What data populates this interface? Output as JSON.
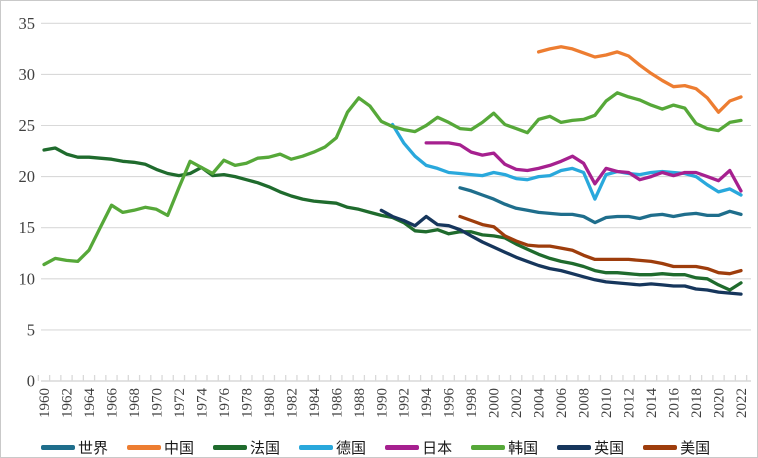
{
  "chart_data": {
    "type": "line",
    "title": "",
    "xlabel": "",
    "ylabel": "",
    "x_range": [
      1960,
      2022
    ],
    "ylim": [
      0,
      35
    ],
    "grid": true,
    "legend_position": "bottom",
    "y_ticks": [
      "0",
      "5",
      "10",
      "15",
      "20",
      "25",
      "30",
      "35"
    ],
    "x_tick_labels": [
      "1960",
      "1962",
      "1964",
      "1966",
      "1968",
      "1970",
      "1972",
      "1974",
      "1976",
      "1978",
      "1980",
      "1982",
      "1984",
      "1986",
      "1988",
      "1990",
      "1992",
      "1994",
      "1996",
      "1998",
      "2000",
      "2002",
      "2004",
      "2006",
      "2008",
      "2010",
      "2012",
      "2014",
      "2016",
      "2018",
      "2020",
      "2022"
    ],
    "series": [
      {
        "name": "世界",
        "key": "world",
        "color": "#1F6E8C",
        "start_year": 1997,
        "values": [
          18.9,
          18.6,
          18.2,
          17.8,
          17.3,
          16.9,
          16.7,
          16.5,
          16.4,
          16.3,
          16.3,
          16.1,
          15.5,
          16.0,
          16.1,
          16.1,
          15.9,
          16.2,
          16.3,
          16.1,
          16.3,
          16.4,
          16.2,
          16.2,
          16.6,
          16.3
        ]
      },
      {
        "name": "中国",
        "key": "china",
        "color": "#ED7D31",
        "start_year": 2004,
        "values": [
          32.2,
          32.5,
          32.7,
          32.5,
          32.1,
          31.7,
          31.9,
          32.2,
          31.8,
          30.9,
          30.1,
          29.4,
          28.8,
          28.9,
          28.6,
          27.7,
          26.3,
          27.4,
          27.8
        ]
      },
      {
        "name": "法国",
        "key": "france",
        "color": "#1F6B2D",
        "start_year": 1960,
        "values": [
          22.6,
          22.8,
          22.2,
          21.9,
          21.9,
          21.8,
          21.7,
          21.5,
          21.4,
          21.2,
          20.7,
          20.3,
          20.1,
          20.3,
          20.9,
          20.1,
          20.2,
          20.0,
          19.7,
          19.4,
          19.0,
          18.5,
          18.1,
          17.8,
          17.6,
          17.5,
          17.4,
          17.0,
          16.8,
          16.5,
          16.2,
          16.0,
          15.5,
          14.7,
          14.6,
          14.8,
          14.4,
          14.6,
          14.6,
          14.3,
          14.2,
          14.0,
          13.4,
          12.9,
          12.4,
          12.0,
          11.7,
          11.5,
          11.2,
          10.8,
          10.6,
          10.6,
          10.5,
          10.4,
          10.4,
          10.5,
          10.4,
          10.4,
          10.1,
          10.0,
          9.4,
          8.9,
          9.6
        ]
      },
      {
        "name": "德国",
        "key": "germany",
        "color": "#29A8DC",
        "start_year": 1991,
        "values": [
          25.1,
          23.3,
          22.0,
          21.1,
          20.8,
          20.4,
          20.3,
          20.2,
          20.1,
          20.4,
          20.2,
          19.8,
          19.7,
          20.0,
          20.1,
          20.6,
          20.8,
          20.4,
          17.8,
          20.2,
          20.5,
          20.3,
          20.2,
          20.4,
          20.5,
          20.4,
          20.3,
          20.0,
          19.2,
          18.5,
          18.8,
          18.2
        ]
      },
      {
        "name": "日本",
        "key": "japan",
        "color": "#A6208F",
        "start_year": 1994,
        "values": [
          23.3,
          23.3,
          23.3,
          23.1,
          22.4,
          22.1,
          22.3,
          21.2,
          20.7,
          20.6,
          20.8,
          21.1,
          21.5,
          22.0,
          21.3,
          19.3,
          20.8,
          20.5,
          20.4,
          19.7,
          20.0,
          20.4,
          20.1,
          20.4,
          20.4,
          20.0,
          19.6,
          20.6,
          18.6
        ]
      },
      {
        "name": "韩国",
        "key": "korea",
        "color": "#56A839",
        "start_year": 1960,
        "values": [
          11.4,
          12.0,
          11.8,
          11.7,
          12.8,
          15.0,
          17.2,
          16.5,
          16.7,
          17.0,
          16.8,
          16.2,
          18.9,
          21.5,
          20.9,
          20.3,
          21.6,
          21.1,
          21.3,
          21.8,
          21.9,
          22.2,
          21.7,
          22.0,
          22.4,
          22.9,
          23.8,
          26.3,
          27.7,
          26.9,
          25.4,
          24.9,
          24.6,
          24.4,
          25.0,
          25.8,
          25.3,
          24.7,
          24.6,
          25.3,
          26.2,
          25.1,
          24.7,
          24.3,
          25.6,
          25.9,
          25.3,
          25.5,
          25.6,
          26.0,
          27.4,
          28.2,
          27.8,
          27.5,
          27.0,
          26.6,
          27.0,
          26.7,
          25.2,
          24.7,
          24.5,
          25.3,
          25.5
        ]
      },
      {
        "name": "英国",
        "key": "uk",
        "color": "#16365C",
        "start_year": 1990,
        "values": [
          16.7,
          16.1,
          15.7,
          15.2,
          16.1,
          15.3,
          15.2,
          14.8,
          14.2,
          13.6,
          13.1,
          12.6,
          12.1,
          11.7,
          11.3,
          11.0,
          10.8,
          10.5,
          10.2,
          9.9,
          9.7,
          9.6,
          9.5,
          9.4,
          9.5,
          9.4,
          9.3,
          9.3,
          9.0,
          8.9,
          8.7,
          8.6,
          8.5
        ]
      },
      {
        "name": "美国",
        "key": "usa",
        "color": "#9E3D0C",
        "start_year": 1997,
        "values": [
          16.1,
          15.7,
          15.3,
          15.1,
          14.2,
          13.7,
          13.3,
          13.2,
          13.2,
          13.0,
          12.8,
          12.3,
          11.9,
          11.9,
          11.9,
          11.9,
          11.8,
          11.7,
          11.5,
          11.2,
          11.2,
          11.2,
          11.0,
          10.6,
          10.5,
          10.8
        ]
      }
    ],
    "style": {
      "gridline_color": "#D9D9D9",
      "axis_color": "#D9D9D9",
      "tick_label_color": "#404040",
      "background": "#FFFFFF",
      "line_width": 3.3
    }
  }
}
